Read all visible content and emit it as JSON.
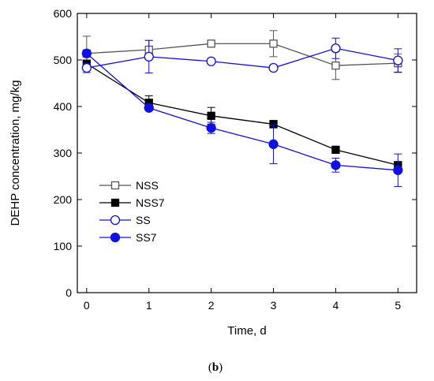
{
  "chart_data": {
    "type": "line",
    "xlabel": "Time, d",
    "ylabel": "DEHP concentration, mg/kg",
    "x": [
      0,
      1,
      2,
      3,
      4,
      5
    ],
    "xlim": [
      -0.15,
      5.3
    ],
    "ylim": [
      0,
      600
    ],
    "xticks": [
      "0",
      "1",
      "2",
      "3",
      "4",
      "5"
    ],
    "yticks": [
      "0",
      "100",
      "200",
      "300",
      "400",
      "500",
      "600"
    ],
    "legend_position": "left-middle",
    "series": [
      {
        "name": "NSS",
        "values": [
          514,
          522,
          535,
          535,
          488,
          493
        ],
        "errors": [
          37,
          20,
          5,
          28,
          30,
          20
        ],
        "color": "#555555",
        "marker": "square-open"
      },
      {
        "name": "NSS7",
        "values": [
          492,
          408,
          380,
          362,
          307,
          274
        ],
        "errors": [
          5,
          15,
          18,
          8,
          5,
          5
        ],
        "color": "#000000",
        "marker": "square-filled"
      },
      {
        "name": "SS",
        "values": [
          483,
          507,
          497,
          483,
          525,
          499
        ],
        "errors": [
          10,
          35,
          5,
          5,
          22,
          25
        ],
        "color": "#1010e0",
        "marker": "circle-open"
      },
      {
        "name": "SS7",
        "values": [
          514,
          397,
          354,
          319,
          274,
          263
        ],
        "errors": [
          5,
          5,
          12,
          42,
          15,
          35
        ],
        "color": "#1010e0",
        "marker": "circle-filled"
      }
    ]
  },
  "caption": {
    "open": "(",
    "letter": "b",
    "close": ")"
  }
}
